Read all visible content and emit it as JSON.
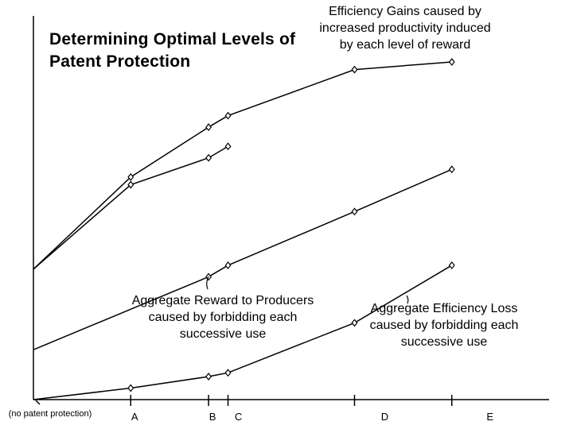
{
  "chart_data": {
    "type": "line",
    "title": "Determining Optimal Levels of Patent Protection",
    "categories": [
      "(no patent protection)",
      "A",
      "B",
      "C",
      "D",
      "E"
    ],
    "x": [
      0,
      1,
      1.8,
      2,
      3.3,
      4.3
    ],
    "xlim": [
      0,
      5.3
    ],
    "ylim": [
      0,
      10
    ],
    "grid": false,
    "legend": "none",
    "series": [
      {
        "key": "gains_upper",
        "x": [
          0,
          1,
          1.8,
          2,
          3.3,
          4.3
        ],
        "values": [
          3.4,
          5.8,
          7.1,
          7.4,
          8.6,
          8.8
        ]
      },
      {
        "key": "gains_lower",
        "x": [
          0,
          1,
          1.8,
          2
        ],
        "values": [
          3.4,
          5.6,
          6.3,
          6.6
        ]
      },
      {
        "key": "reward",
        "x": [
          0,
          1.8,
          2,
          3.3,
          4.3
        ],
        "values": [
          1.3,
          3.2,
          3.5,
          4.9,
          6.0
        ]
      },
      {
        "key": "loss",
        "x": [
          0,
          1,
          1.8,
          2,
          3.3,
          4.3
        ],
        "values": [
          0.0,
          0.3,
          0.6,
          0.7,
          2.0,
          3.5
        ]
      }
    ],
    "annotations": {
      "gains": [
        "Efficiency Gains caused by",
        "increased productivity induced",
        "by each level of reward"
      ],
      "reward": [
        "Aggregate Reward to Producers",
        "caused by forbidding each",
        "successive use"
      ],
      "loss": [
        "Aggregate Efficiency Loss",
        "caused by forbidding each",
        "successive use"
      ]
    }
  }
}
